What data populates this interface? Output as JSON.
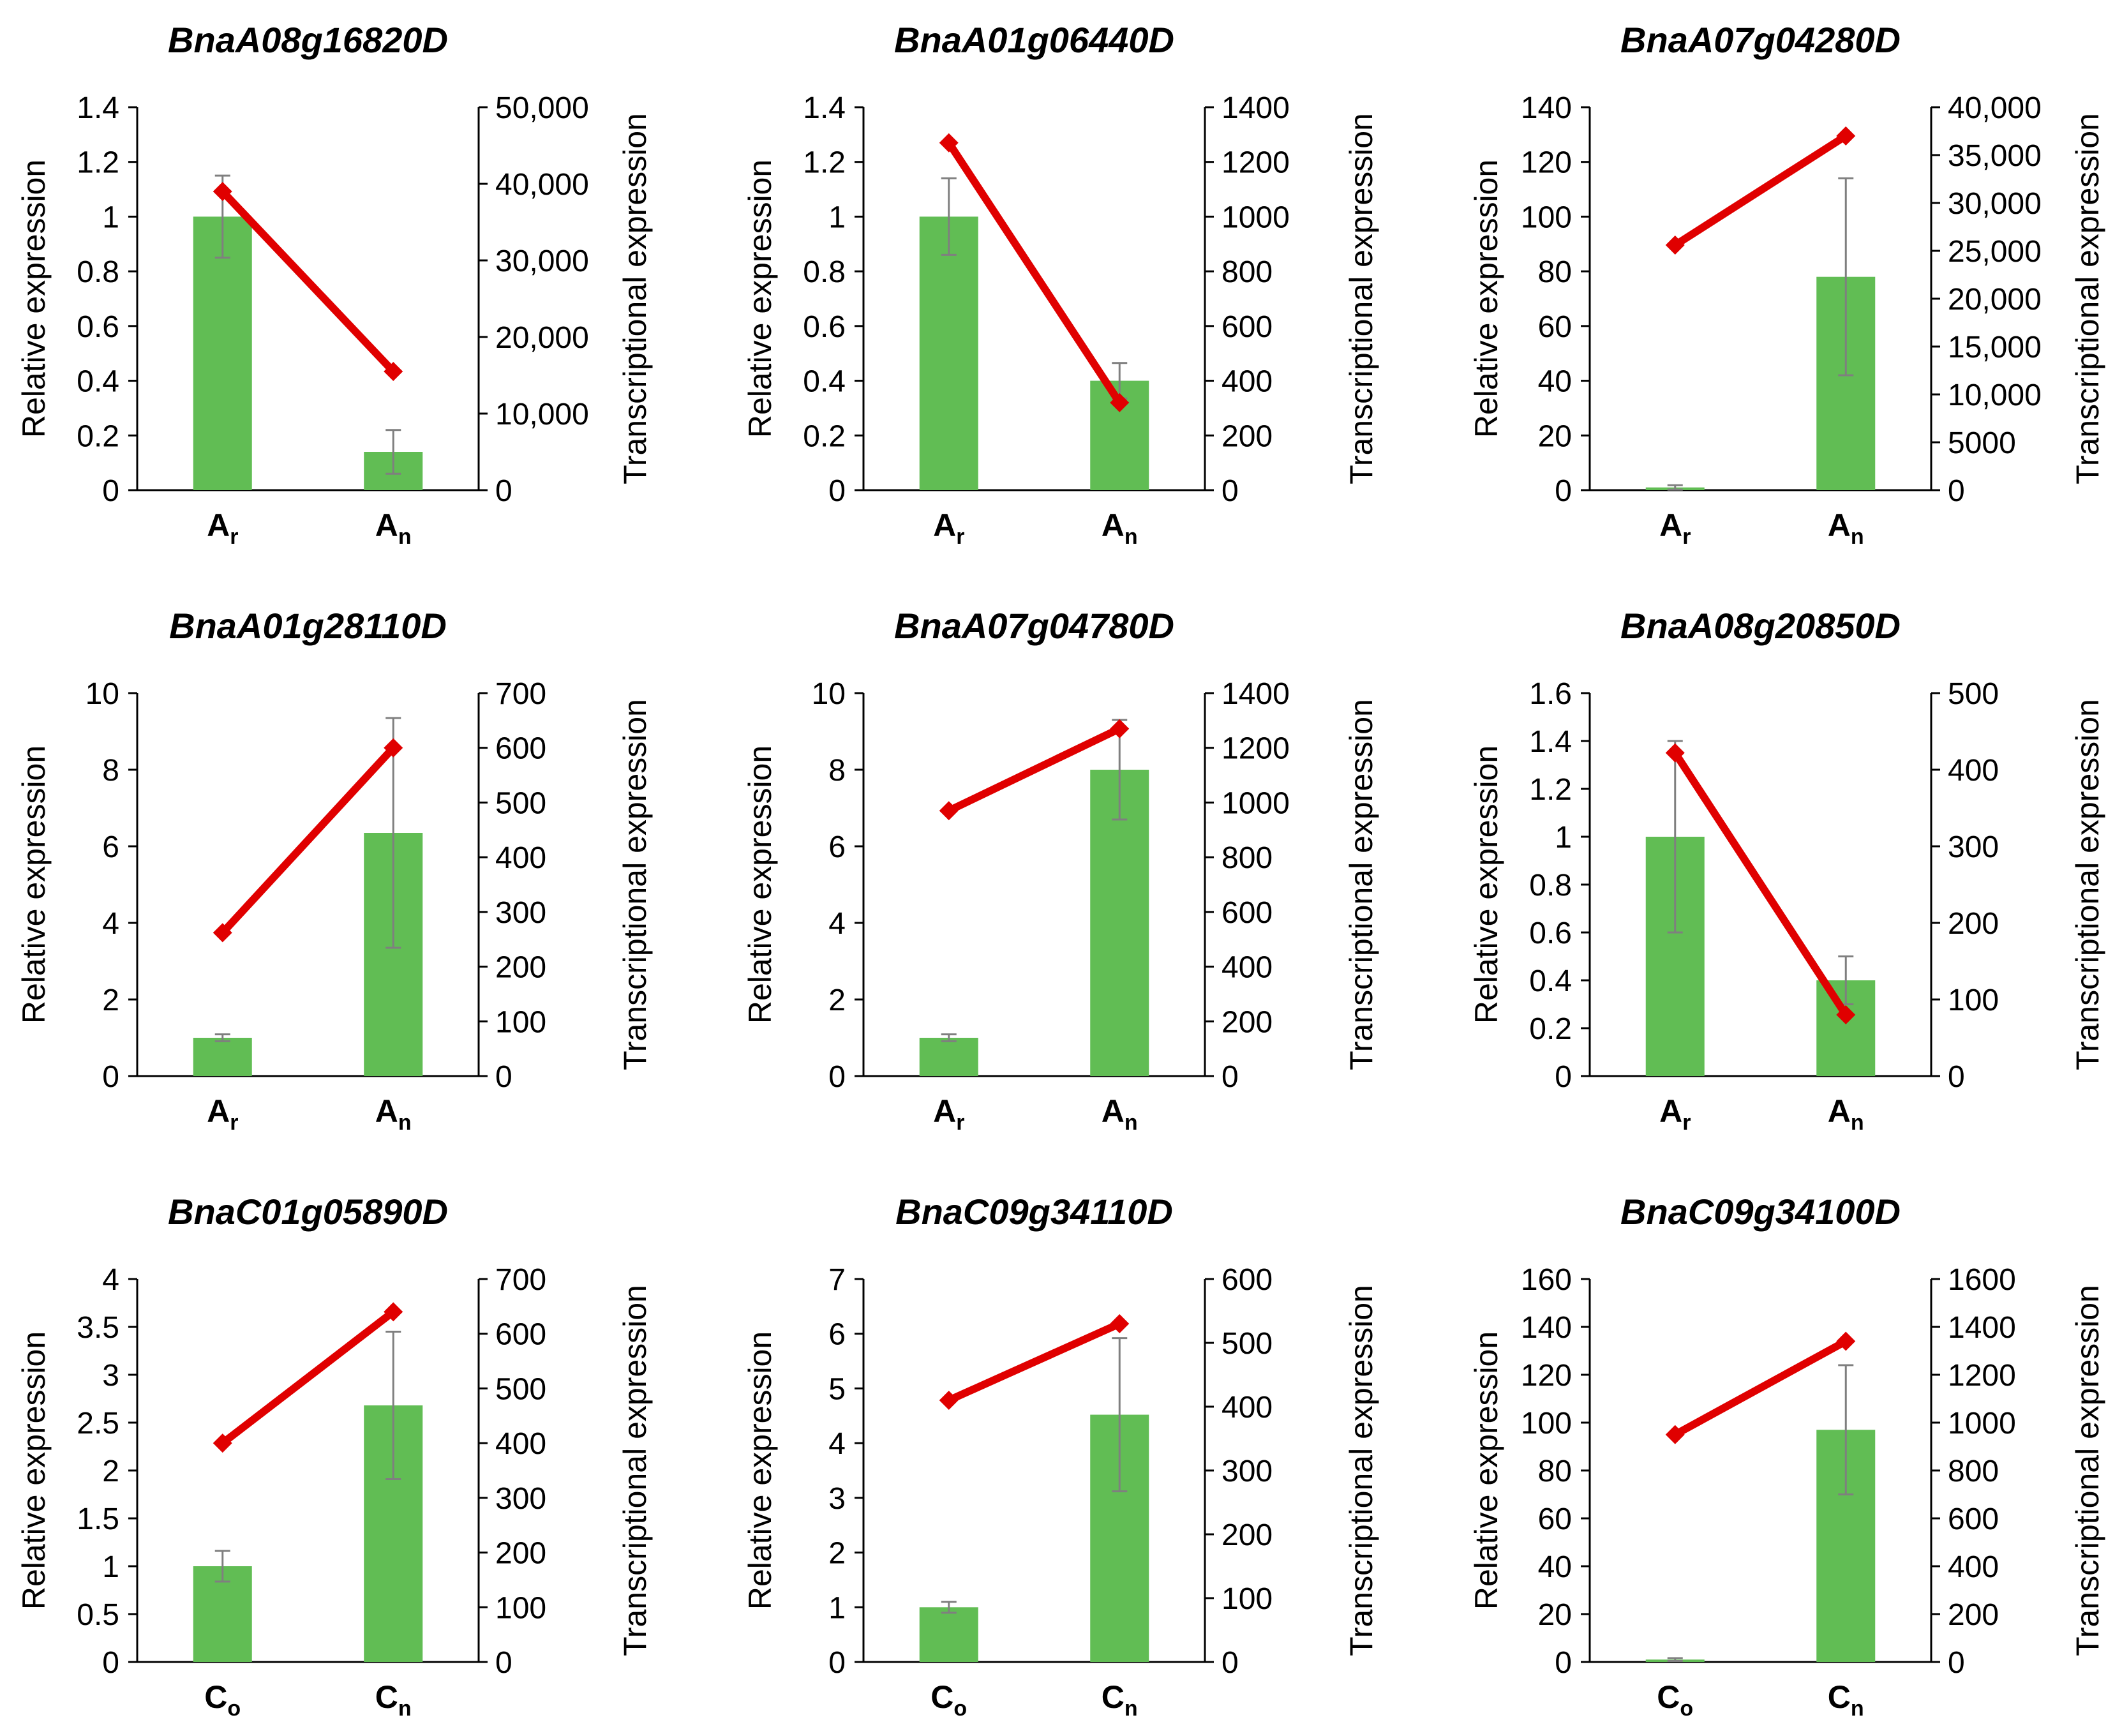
{
  "figure": {
    "colors": {
      "bar": "#61BD54",
      "line": "#E00000",
      "errorbar": "#7F7F7F",
      "axis": "#000000"
    },
    "yaxis_left_label": "Relative expression",
    "yaxis_right_label": "Transcriptional expression"
  },
  "chart_data": [
    {
      "type": "bar+line",
      "title": "BnaA08g16820D",
      "categories": [
        {
          "main": "A",
          "sub": "r"
        },
        {
          "main": "A",
          "sub": "n"
        }
      ],
      "series": [
        {
          "name": "Relative expression",
          "axis": "left",
          "type": "bar",
          "values": [
            1.0,
            0.14
          ],
          "errors": [
            0.15,
            0.08
          ]
        },
        {
          "name": "Transcriptional expression",
          "axis": "right",
          "type": "line",
          "values": [
            39000,
            15500
          ]
        }
      ],
      "ylim_left": [
        0,
        1.4
      ],
      "yticks_left": [
        "0",
        "0.2",
        "0.4",
        "0.6",
        "0.8",
        "1",
        "1.2",
        "1.4"
      ],
      "ylim_right": [
        0,
        50000
      ],
      "yticks_right": [
        "0",
        "10,000",
        "20,000",
        "30,000",
        "40,000",
        "50,000"
      ]
    },
    {
      "type": "bar+line",
      "title": "BnaA01g06440D",
      "categories": [
        {
          "main": "A",
          "sub": "r"
        },
        {
          "main": "A",
          "sub": "n"
        }
      ],
      "series": [
        {
          "name": "Relative expression",
          "axis": "left",
          "type": "bar",
          "values": [
            1.0,
            0.4
          ],
          "errors": [
            0.14,
            0.065
          ]
        },
        {
          "name": "Transcriptional expression",
          "axis": "right",
          "type": "line",
          "values": [
            1270,
            320
          ]
        }
      ],
      "ylim_left": [
        0,
        1.4
      ],
      "yticks_left": [
        "0",
        "0.2",
        "0.4",
        "0.6",
        "0.8",
        "1",
        "1.2",
        "1.4"
      ],
      "ylim_right": [
        0,
        1400
      ],
      "yticks_right": [
        "0",
        "200",
        "400",
        "600",
        "800",
        "1000",
        "1200",
        "1400"
      ]
    },
    {
      "type": "bar+line",
      "title": "BnaA07g04280D",
      "categories": [
        {
          "main": "A",
          "sub": "r"
        },
        {
          "main": "A",
          "sub": "n"
        }
      ],
      "series": [
        {
          "name": "Relative expression",
          "axis": "left",
          "type": "bar",
          "values": [
            1.0,
            78
          ],
          "errors": [
            0.8,
            36
          ]
        },
        {
          "name": "Transcriptional expression",
          "axis": "right",
          "type": "line",
          "values": [
            25600,
            37000
          ]
        }
      ],
      "ylim_left": [
        0,
        140
      ],
      "yticks_left": [
        "0",
        "20",
        "40",
        "60",
        "80",
        "100",
        "120",
        "140"
      ],
      "ylim_right": [
        0,
        40000
      ],
      "yticks_right": [
        "0",
        "5000",
        "10,000",
        "15,000",
        "20,000",
        "25,000",
        "30,000",
        "35,000",
        "40,000"
      ]
    },
    {
      "type": "bar+line",
      "title": "BnaA01g28110D",
      "categories": [
        {
          "main": "A",
          "sub": "r"
        },
        {
          "main": "A",
          "sub": "n"
        }
      ],
      "series": [
        {
          "name": "Relative expression",
          "axis": "left",
          "type": "bar",
          "values": [
            1.0,
            6.35
          ],
          "errors": [
            0.09,
            3.0
          ]
        },
        {
          "name": "Transcriptional expression",
          "axis": "right",
          "type": "line",
          "values": [
            262,
            600
          ]
        }
      ],
      "ylim_left": [
        0,
        10
      ],
      "yticks_left": [
        "0",
        "2",
        "4",
        "6",
        "8",
        "10"
      ],
      "ylim_right": [
        0,
        700
      ],
      "yticks_right": [
        "0",
        "100",
        "200",
        "300",
        "400",
        "500",
        "600",
        "700"
      ]
    },
    {
      "type": "bar+line",
      "title": "BnaA07g04780D",
      "categories": [
        {
          "main": "A",
          "sub": "r"
        },
        {
          "main": "A",
          "sub": "n"
        }
      ],
      "series": [
        {
          "name": "Relative expression",
          "axis": "left",
          "type": "bar",
          "values": [
            1.0,
            8.0
          ],
          "errors": [
            0.09,
            1.3
          ]
        },
        {
          "name": "Transcriptional expression",
          "axis": "right",
          "type": "line",
          "values": [
            970,
            1270
          ]
        }
      ],
      "ylim_left": [
        0,
        10
      ],
      "yticks_left": [
        "0",
        "2",
        "4",
        "6",
        "8",
        "10"
      ],
      "ylim_right": [
        0,
        1400
      ],
      "yticks_right": [
        "0",
        "200",
        "400",
        "600",
        "800",
        "1000",
        "1200",
        "1400"
      ]
    },
    {
      "type": "bar+line",
      "title": "BnaA08g20850D",
      "categories": [
        {
          "main": "A",
          "sub": "r"
        },
        {
          "main": "A",
          "sub": "n"
        }
      ],
      "series": [
        {
          "name": "Relative expression",
          "axis": "left",
          "type": "bar",
          "values": [
            1.0,
            0.4
          ],
          "errors": [
            0.4,
            0.1
          ]
        },
        {
          "name": "Transcriptional expression",
          "axis": "right",
          "type": "line",
          "values": [
            422,
            80
          ]
        }
      ],
      "ylim_left": [
        0,
        1.6
      ],
      "yticks_left": [
        "0",
        "0.2",
        "0.4",
        "0.6",
        "0.8",
        "1",
        "1.2",
        "1.4",
        "1.6"
      ],
      "ylim_right": [
        0,
        500
      ],
      "yticks_right": [
        "0",
        "100",
        "200",
        "300",
        "400",
        "500"
      ]
    },
    {
      "type": "bar+line",
      "title": "BnaC01g05890D",
      "categories": [
        {
          "main": "C",
          "sub": "o"
        },
        {
          "main": "C",
          "sub": "n"
        }
      ],
      "series": [
        {
          "name": "Relative expression",
          "axis": "left",
          "type": "bar",
          "values": [
            1.0,
            2.68
          ],
          "errors": [
            0.16,
            0.77
          ]
        },
        {
          "name": "Transcriptional expression",
          "axis": "right",
          "type": "line",
          "values": [
            400,
            640
          ]
        }
      ],
      "ylim_left": [
        0,
        4
      ],
      "yticks_left": [
        "0",
        "0.5",
        "1",
        "1.5",
        "2",
        "2.5",
        "3",
        "3.5",
        "4"
      ],
      "ylim_right": [
        0,
        700
      ],
      "yticks_right": [
        "0",
        "100",
        "200",
        "300",
        "400",
        "500",
        "600",
        "700"
      ]
    },
    {
      "type": "bar+line",
      "title": "BnaC09g34110D",
      "categories": [
        {
          "main": "C",
          "sub": "o"
        },
        {
          "main": "C",
          "sub": "n"
        }
      ],
      "series": [
        {
          "name": "Relative expression",
          "axis": "left",
          "type": "bar",
          "values": [
            1.0,
            4.52
          ],
          "errors": [
            0.1,
            1.4
          ]
        },
        {
          "name": "Transcriptional expression",
          "axis": "right",
          "type": "line",
          "values": [
            410,
            530
          ]
        }
      ],
      "ylim_left": [
        0,
        7
      ],
      "yticks_left": [
        "0",
        "1",
        "2",
        "3",
        "4",
        "5",
        "6",
        "7"
      ],
      "ylim_right": [
        0,
        600
      ],
      "yticks_right": [
        "0",
        "100",
        "200",
        "300",
        "400",
        "500",
        "600"
      ]
    },
    {
      "type": "bar+line",
      "title": "BnaC09g34100D",
      "categories": [
        {
          "main": "C",
          "sub": "o"
        },
        {
          "main": "C",
          "sub": "n"
        }
      ],
      "series": [
        {
          "name": "Relative expression",
          "axis": "left",
          "type": "bar",
          "values": [
            1.0,
            97
          ],
          "errors": [
            0.6,
            27
          ]
        },
        {
          "name": "Transcriptional expression",
          "axis": "right",
          "type": "line",
          "values": [
            950,
            1340
          ]
        }
      ],
      "ylim_left": [
        0,
        160
      ],
      "yticks_left": [
        "0",
        "20",
        "40",
        "60",
        "80",
        "100",
        "120",
        "140",
        "160"
      ],
      "ylim_right": [
        0,
        1600
      ],
      "yticks_right": [
        "0",
        "200",
        "400",
        "600",
        "800",
        "1000",
        "1200",
        "1400",
        "1600"
      ]
    }
  ]
}
